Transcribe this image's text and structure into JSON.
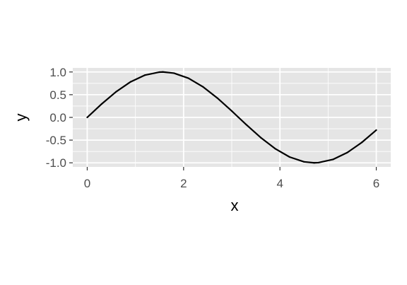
{
  "chart_data": {
    "type": "line",
    "xlabel": "x",
    "ylabel": "y",
    "xlim": [
      -0.3,
      6.3
    ],
    "ylim": [
      -1.09,
      1.09
    ],
    "x_ticks": [
      0,
      2,
      4,
      6
    ],
    "x_tick_labels": [
      "0",
      "2",
      "4",
      "6"
    ],
    "y_ticks": [
      -1.0,
      -0.5,
      0.0,
      0.5,
      1.0
    ],
    "y_tick_labels": [
      "-1.0",
      "-0.5",
      "0.0",
      "0.5",
      "1.0"
    ],
    "x_minor_ticks": [
      1,
      3,
      5
    ],
    "y_minor_ticks": [
      -0.75,
      -0.25,
      0.25,
      0.75
    ],
    "grid": true,
    "panel_background": "#e5e5e5",
    "grid_color": "#ffffff",
    "line_color": "#000000",
    "series": [
      {
        "x": [
          0.0,
          0.3,
          0.6,
          0.9,
          1.2,
          1.5,
          1.57,
          1.8,
          2.1,
          2.4,
          2.7,
          3.0,
          3.14,
          3.3,
          3.6,
          3.9,
          4.2,
          4.5,
          4.71,
          4.8,
          5.1,
          5.4,
          5.7,
          6.0
        ],
        "y": [
          0.0,
          0.296,
          0.565,
          0.783,
          0.932,
          0.997,
          1.0,
          0.974,
          0.863,
          0.675,
          0.427,
          0.141,
          0.0,
          -0.158,
          -0.443,
          -0.688,
          -0.872,
          -0.978,
          -1.0,
          -0.996,
          -0.926,
          -0.773,
          -0.551,
          -0.279
        ]
      }
    ]
  }
}
